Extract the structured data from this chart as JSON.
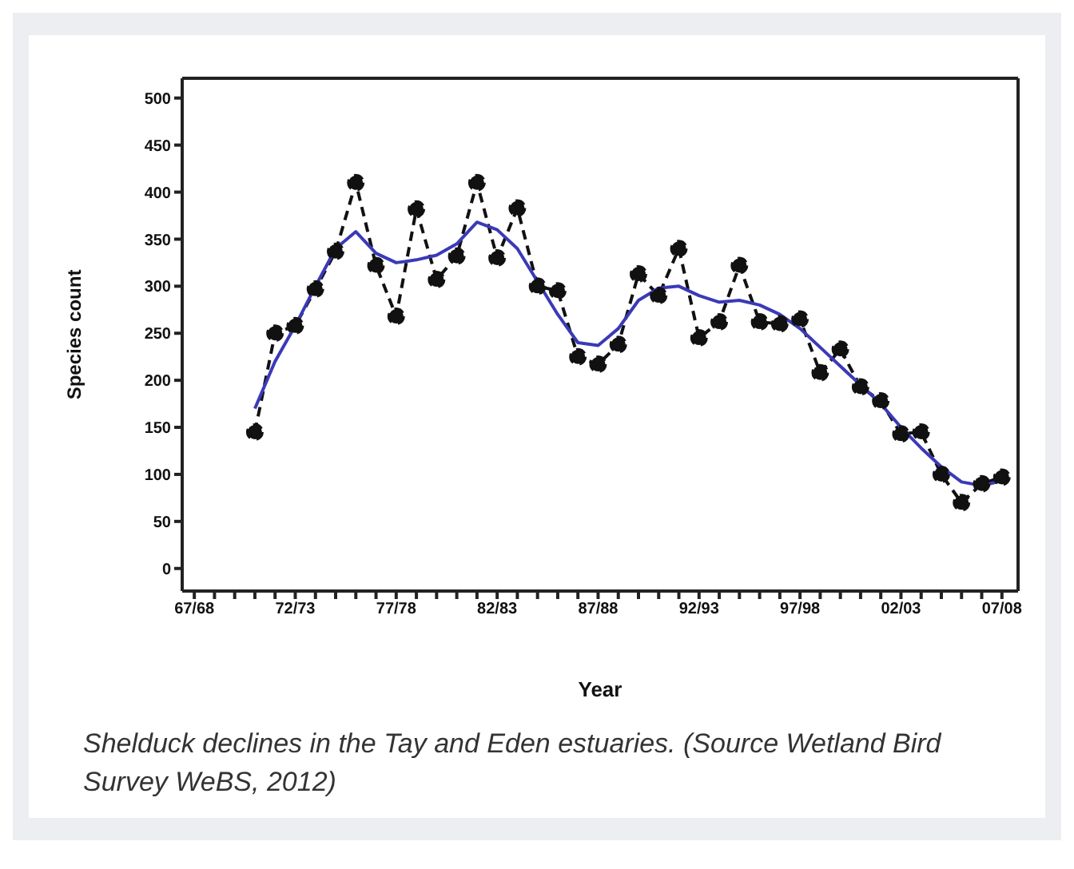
{
  "chart_data": {
    "type": "line",
    "xlabel": "Year",
    "ylabel": "Species count",
    "categories": [
      "67/68",
      null,
      null,
      null,
      null,
      "72/73",
      null,
      null,
      null,
      null,
      "77/78",
      null,
      null,
      null,
      null,
      "82/83",
      null,
      null,
      null,
      null,
      "87/88",
      null,
      null,
      null,
      null,
      "92/93",
      null,
      null,
      null,
      null,
      "97/98",
      null,
      null,
      null,
      null,
      "02/03",
      null,
      null,
      null,
      null,
      "07/08"
    ],
    "series": [
      {
        "color": "#111111",
        "line_style": "dashed",
        "marker": "circle",
        "values": [
          null,
          null,
          null,
          145,
          250,
          258,
          297,
          337,
          410,
          322,
          268,
          382,
          307,
          332,
          410,
          330,
          383,
          300,
          295,
          225,
          217,
          238,
          313,
          290,
          340,
          245,
          262,
          322,
          262,
          260,
          265,
          208,
          233,
          193,
          178,
          143,
          145,
          100,
          70,
          90,
          97
        ]
      },
      {
        "color": "#3a3ab8",
        "line_style": "solid",
        "marker": "none",
        "values": [
          null,
          null,
          null,
          170,
          220,
          258,
          300,
          340,
          358,
          335,
          325,
          328,
          333,
          345,
          368,
          360,
          340,
          305,
          270,
          240,
          237,
          255,
          285,
          298,
          300,
          290,
          283,
          285,
          280,
          270,
          255,
          235,
          215,
          195,
          175,
          150,
          128,
          108,
          92,
          88,
          93
        ]
      }
    ],
    "ylim": [
      -24,
      521
    ],
    "yticks": [
      0,
      50,
      100,
      150,
      200,
      250,
      300,
      350,
      400,
      450,
      500
    ],
    "grid": false,
    "annotations": [
      "Shelduck declines in the Tay and Eden estuaries. (Source Wetland Bird Survey WeBS, 2012)"
    ]
  }
}
